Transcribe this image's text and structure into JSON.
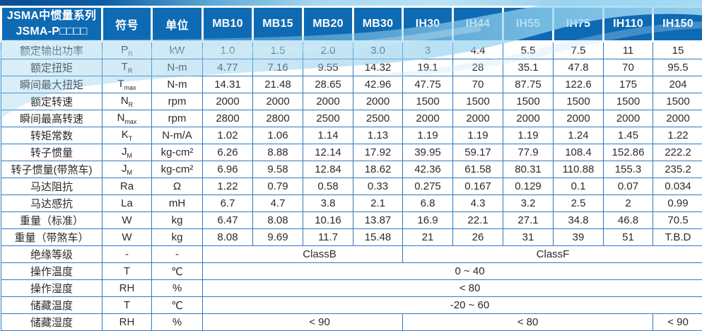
{
  "header": {
    "title_line1": "JSMA中惯量系列",
    "title_line2": "JSMA-P□□□□",
    "symbol_col": "符号",
    "unit_col": "单位",
    "models": [
      "MB10",
      "MB15",
      "MB20",
      "MB30",
      "IH30",
      "IH44",
      "IH55",
      "IH75",
      "IH110",
      "IH150"
    ]
  },
  "rows": [
    {
      "label": "额定输出功率",
      "sym": "P",
      "sub": "R",
      "unit": "kW",
      "values": [
        "1.0",
        "1.5",
        "2.0",
        "3.0",
        "3",
        "4.4",
        "5.5",
        "7.5",
        "11",
        "15"
      ]
    },
    {
      "label": "额定扭矩",
      "sym": "T",
      "sub": "R",
      "unit": "N-m",
      "values": [
        "4.77",
        "7.16",
        "9.55",
        "14.32",
        "19.1",
        "28",
        "35.1",
        "47.8",
        "70",
        "95.5"
      ]
    },
    {
      "label": "瞬间最大扭矩",
      "sym": "T",
      "sub": "max",
      "unit": "N-m",
      "values": [
        "14.31",
        "21.48",
        "28.65",
        "42.96",
        "47.75",
        "70",
        "87.75",
        "122.6",
        "175",
        "204"
      ]
    },
    {
      "label": "额定转速",
      "sym": "N",
      "sub": "R",
      "unit": "rpm",
      "values": [
        "2000",
        "2000",
        "2000",
        "2000",
        "1500",
        "1500",
        "1500",
        "1500",
        "1500",
        "1500"
      ]
    },
    {
      "label": "瞬间最高转速",
      "sym": "N",
      "sub": "max",
      "unit": "rpm",
      "values": [
        "2800",
        "2800",
        "2500",
        "2500",
        "2000",
        "2000",
        "2000",
        "2000",
        "2000",
        "2000"
      ]
    },
    {
      "label": "转矩常数",
      "sym": "K",
      "sub": "T",
      "unit": "N-m/A",
      "values": [
        "1.02",
        "1.06",
        "1.14",
        "1.13",
        "1.19",
        "1.19",
        "1.19",
        "1.24",
        "1.45",
        "1.22"
      ]
    },
    {
      "label": "转子惯量",
      "sym": "J",
      "sub": "M",
      "unit": "kg-cm²",
      "values": [
        "6.26",
        "8.88",
        "12.14",
        "17.92",
        "39.95",
        "59.17",
        "77.9",
        "108.4",
        "152.86",
        "222.2"
      ]
    },
    {
      "label": "转子惯量(带煞车)",
      "sym": "J",
      "sub": "M",
      "unit": "kg-cm²",
      "values": [
        "6.96",
        "9.58",
        "12.84",
        "18.62",
        "42.36",
        "61.58",
        "80.31",
        "110.88",
        "155.3",
        "235.2"
      ]
    },
    {
      "label": "马达阻抗",
      "sym": "Ra",
      "sub": "",
      "unit": "Ω",
      "values": [
        "1.22",
        "0.79",
        "0.58",
        "0.33",
        "0.275",
        "0.167",
        "0.129",
        "0.1",
        "0.07",
        "0.034"
      ]
    },
    {
      "label": "马达感抗",
      "sym": "La",
      "sub": "",
      "unit": "mH",
      "values": [
        "6.7",
        "4.7",
        "3.8",
        "2.1",
        "6.8",
        "4.3",
        "3.2",
        "2.5",
        "2",
        "0.99"
      ]
    },
    {
      "label": "重量（标准）",
      "sym": "W",
      "sub": "",
      "unit": "kg",
      "values": [
        "6.47",
        "8.08",
        "10.16",
        "13.87",
        "16.9",
        "22.1",
        "27.1",
        "34.8",
        "46.8",
        "70.5"
      ]
    },
    {
      "label": "重量（带煞车）",
      "sym": "W",
      "sub": "",
      "unit": "kg",
      "values": [
        "8.08",
        "9.69",
        "11.7",
        "15.48",
        "21",
        "26",
        "31",
        "39",
        "51",
        "T.B.D"
      ]
    },
    {
      "label": "绝缘等级",
      "sym": "-",
      "sub": "",
      "unit": "-",
      "merged": [
        {
          "text": "ClassB",
          "span": 4,
          "shift": true
        },
        {
          "text": "ClassF",
          "span": 6,
          "shift": false
        }
      ]
    },
    {
      "label": "操作温度",
      "sym": "T",
      "sub": "",
      "unit": "℃",
      "merged": [
        {
          "text": "0 ~ 40",
          "span": 10,
          "shift": true
        }
      ]
    },
    {
      "label": "操作湿度",
      "sym": "RH",
      "sub": "",
      "unit": "%",
      "merged": [
        {
          "text": "< 80",
          "span": 10,
          "shift": true
        }
      ]
    },
    {
      "label": "储藏温度",
      "sym": "T",
      "sub": "",
      "unit": "℃",
      "merged": [
        {
          "text": "-20 ~ 60",
          "span": 10,
          "shift": true
        }
      ]
    },
    {
      "label": "储藏湿度",
      "sym": "RH",
      "sub": "",
      "unit": "%",
      "merged": [
        {
          "text": "< 90",
          "span": 4,
          "shift": true
        },
        {
          "text": "< 80",
          "span": 5,
          "shift": false
        },
        {
          "text": "< 90",
          "span": 1,
          "shift": false
        }
      ]
    }
  ],
  "colors": {
    "header_blue": "#0e6ab3",
    "grid_blue": "#2e7ac0",
    "strip_dark_blue": "#0c4d90",
    "swoosh_light_blue": "#a6d8f0",
    "header_text": "#ffffff",
    "body_text": "#2b2b2b"
  }
}
